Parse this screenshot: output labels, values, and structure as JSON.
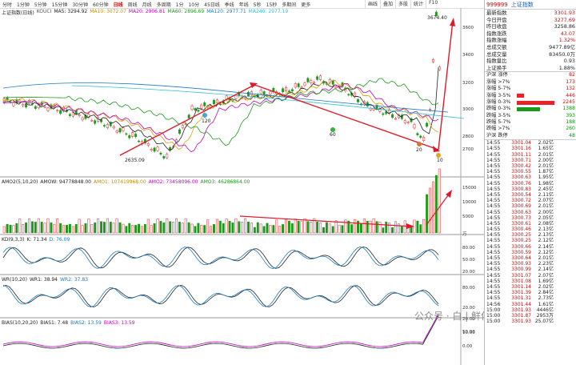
{
  "toolbar": {
    "items": [
      "分时",
      "1分钟",
      "5分钟",
      "15分钟",
      "30分钟",
      "60分钟",
      "日线",
      "周线",
      "月线",
      "多周期",
      "1分",
      "10分",
      "45日线",
      "季线",
      "年线",
      "5秒",
      "15秒",
      "多期间",
      "更多"
    ],
    "active_index": 6,
    "icons": [
      "画线",
      "叠加",
      "多股",
      "统计",
      "F10"
    ]
  },
  "main_legend": {
    "index_name": "上证指数(日线)",
    "kdj": "KOUCI",
    "ma5": "MA5: 3294.92",
    "ma10": "MA10: 3072.07",
    "ma20": "MA20: 2906.81",
    "ma60": "MA60: 2896.69",
    "ma120": "MA120: 2977.71",
    "ma240": "MA240: 2977.19"
  },
  "main_axis": [
    "3600",
    "3400",
    "3200",
    "3000",
    "2800",
    "2700"
  ],
  "main_labels": {
    "high": "3674.40",
    "low": "2635.09",
    "m120": "120",
    "m60": "60",
    "m20": "20",
    "m10": "10"
  },
  "amo_legend": {
    "title": "AMO2(5,10,20)",
    "amow": "AMOW: 94778848.00",
    "amo1": "AMO1: 107419968.00",
    "amo2": "AMO2: 73458096.00",
    "amo3": "AMO3: 46286864.00"
  },
  "amo_axis": [
    "15000",
    "10000",
    "5000",
    "万"
  ],
  "kd_legend": {
    "title": "KD(9,3,3)",
    "k": "K: 71.34",
    "d": "D: 76.09"
  },
  "kd_axis": [
    "80.00",
    "50.00",
    "20.00"
  ],
  "wr_legend": {
    "title": "WR(10,20)",
    "wr1": "WR1: 38.94",
    "wr2": "WR2: 37.83"
  },
  "wr_axis": [
    "80.00",
    "50.00",
    "20.00"
  ],
  "bias_legend": {
    "title": "BIAS(10,20,20)",
    "b1": "BIAS1: 7.48",
    "b2": "BIAS2: 13.59",
    "b3": "BIAS3: 13.59"
  },
  "bias_axis": [
    "20.00",
    "10.00",
    "0.00"
  ],
  "right": {
    "code": "999999",
    "name": "上证指数",
    "stats": [
      {
        "label": "最新指数",
        "value": "3301.93",
        "color": "red"
      },
      {
        "label": "今日开盘",
        "value": "3277.69",
        "color": "red"
      },
      {
        "label": "昨日收盘",
        "value": "3258.86",
        "color": "black"
      },
      {
        "label": "指数涨跌",
        "value": "43.07",
        "color": "red"
      },
      {
        "label": "指数涨幅",
        "value": "1.32%",
        "color": "red"
      },
      {
        "label": "总成交额",
        "value": "9477.89亿",
        "color": "black"
      },
      {
        "label": "总成交量",
        "value": "83450.0万",
        "color": "black"
      },
      {
        "label": "指数量比",
        "value": "0.93",
        "color": "black"
      },
      {
        "label": "上证换手",
        "value": "1.88%",
        "color": "black"
      }
    ],
    "breadth": [
      {
        "label": "沪深 涨停",
        "value": "82",
        "color": "red",
        "bar": 0
      },
      {
        "label": "涨幅 >7%",
        "value": "173",
        "color": "red",
        "bar": 0
      },
      {
        "label": "涨幅 5-7%",
        "value": "132",
        "color": "red",
        "bar": 0
      },
      {
        "label": "涨幅 3-5%",
        "value": "446",
        "color": "red",
        "bar": 0.2
      },
      {
        "label": "涨幅 0-3%",
        "value": "2245",
        "color": "red",
        "bar": 1
      },
      {
        "label": "跌幅 0-3%",
        "value": "1388",
        "color": "green",
        "bar": 0.62
      },
      {
        "label": "跌幅 3-5%",
        "value": "393",
        "color": "green",
        "bar": 0
      },
      {
        "label": "跌幅 5-7%",
        "value": "188",
        "color": "green",
        "bar": 0
      },
      {
        "label": "跌幅 >7%",
        "value": "260",
        "color": "green",
        "bar": 0
      },
      {
        "label": "沪深 跌停",
        "value": "48",
        "color": "green",
        "bar": 0
      }
    ],
    "ticks": [
      {
        "t": "14:55",
        "p": "3301.04",
        "q": "2.02亿",
        "d": ""
      },
      {
        "t": "14:55",
        "p": "3301.16",
        "q": "1.65亿",
        "d": ""
      },
      {
        "t": "14:55",
        "p": "3301.11",
        "q": "2.01亿",
        "d": ""
      },
      {
        "t": "14:55",
        "p": "3300.71",
        "q": "2.00亿",
        "d": ""
      },
      {
        "t": "14:55",
        "p": "3300.42",
        "q": "2.01亿",
        "d": ""
      },
      {
        "t": "14:55",
        "p": "3300.55",
        "q": "1.87亿",
        "d": ""
      },
      {
        "t": "14:55",
        "p": "3300.63",
        "q": "1.95亿",
        "d": ""
      },
      {
        "t": "14:55",
        "p": "3300.76",
        "q": "1.98亿",
        "d": ""
      },
      {
        "t": "14:55",
        "p": "3300.83",
        "q": "2.45亿",
        "d": ""
      },
      {
        "t": "14:55",
        "p": "3300.54",
        "q": "2.11亿",
        "d": ""
      },
      {
        "t": "14:55",
        "p": "3300.72",
        "q": "2.07亿",
        "d": ""
      },
      {
        "t": "14:55",
        "p": "3300.69",
        "q": "2.01亿",
        "d": ""
      },
      {
        "t": "14:55",
        "p": "3300.63",
        "q": "2.00亿",
        "d": ""
      },
      {
        "t": "14:55",
        "p": "3300.73",
        "q": "2.05亿",
        "d": ""
      },
      {
        "t": "14:55",
        "p": "3300.61",
        "q": "2.08亿",
        "d": ""
      },
      {
        "t": "14:55",
        "p": "3300.46",
        "q": "2.13亿",
        "d": ""
      },
      {
        "t": "14:55",
        "p": "3300.25",
        "q": "2.13亿",
        "d": ""
      },
      {
        "t": "14:55",
        "p": "3300.25",
        "q": "2.12亿",
        "d": ""
      },
      {
        "t": "14:55",
        "p": "3300.66",
        "q": "2.14亿",
        "d": ""
      },
      {
        "t": "14:55",
        "p": "3300.59",
        "q": "2.12亿",
        "d": ""
      },
      {
        "t": "14:55",
        "p": "3300.64",
        "q": "2.01亿",
        "d": ""
      },
      {
        "t": "14:55",
        "p": "3300.93",
        "q": "2.23亿",
        "d": ""
      },
      {
        "t": "14:55",
        "p": "3300.99",
        "q": "2.14亿",
        "d": ""
      },
      {
        "t": "14:55",
        "p": "3301.07",
        "q": "2.07亿",
        "d": ""
      },
      {
        "t": "14:55",
        "p": "3301.08",
        "q": "1.69亿",
        "d": ""
      },
      {
        "t": "14:55",
        "p": "3301.14",
        "q": "2.02亿",
        "d": ""
      },
      {
        "t": "14:55",
        "p": "3301.39",
        "q": "2.84亿",
        "d": ""
      },
      {
        "t": "14:55",
        "p": "3301.31",
        "q": "2.73亿",
        "d": ""
      },
      {
        "t": "14:56",
        "p": "3301.44",
        "q": "1.61亿",
        "d": ""
      },
      {
        "t": "15:00",
        "p": "3301.93",
        "q": "4446亿",
        "d": ""
      },
      {
        "t": "15:00",
        "p": "3301.87",
        "q": "2953万",
        "d": ""
      },
      {
        "t": "15:00",
        "p": "3301.93",
        "q": "25.07亿",
        "d": ""
      }
    ]
  },
  "watermark": "公众号 · 白 | 鲜伴0",
  "colors": {
    "up": "#e8222a",
    "down": "#1a9a1a",
    "arrow": "#e0192a",
    "ma5": "#222222",
    "ma10": "#d4a000",
    "ma20": "#c000c0",
    "ma60": "#1a9a1a",
    "ma120": "#1a7ac0",
    "ma240": "#30c0d0"
  }
}
